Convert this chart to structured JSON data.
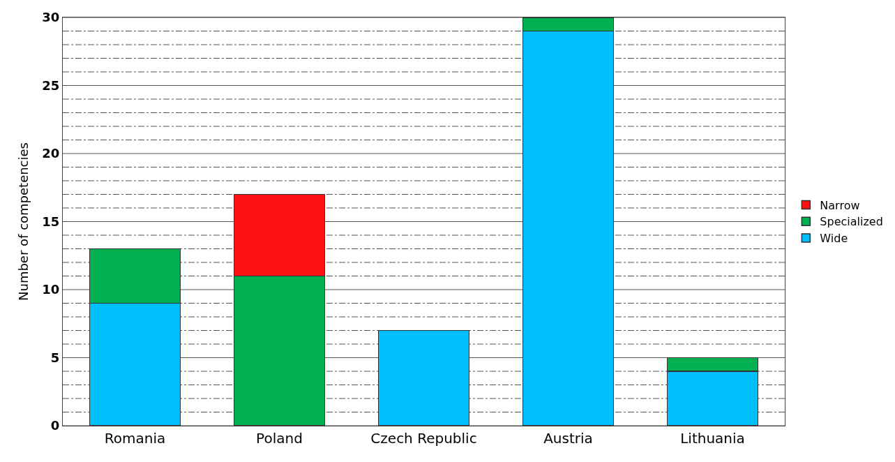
{
  "chart_data": {
    "type": "bar",
    "stacked": true,
    "ylabel": "Number of competencies",
    "categories": [
      "Romania",
      "Poland",
      "Czech Republic",
      "Austria",
      "Lithuania"
    ],
    "series": [
      {
        "name": "Wide",
        "color": "#00bfff",
        "values": [
          9,
          null,
          7,
          29,
          4
        ]
      },
      {
        "name": "Specialized",
        "color": "#00b050",
        "values": [
          4,
          11,
          null,
          1,
          1
        ]
      },
      {
        "name": "Narrow",
        "color": "#ff1111",
        "values": [
          null,
          6,
          null,
          null,
          null
        ]
      }
    ],
    "ylim": [
      0,
      30
    ],
    "yticks": [
      0,
      {
        "value": 1,
        "label": null
      },
      {
        "value": 2,
        "label": null
      },
      {
        "value": 3,
        "label": null
      },
      {
        "value": 4,
        "label": null
      },
      5,
      {
        "value": 6,
        "label": null
      },
      {
        "value": 7,
        "label": null
      },
      {
        "value": 8,
        "label": null
      },
      {
        "value": 9,
        "label": null
      },
      10,
      {
        "value": 11,
        "label": null
      },
      {
        "value": 12,
        "label": null
      },
      {
        "value": 13,
        "label": null
      },
      {
        "value": 14,
        "label": null
      },
      15,
      {
        "value": 16,
        "label": null
      },
      {
        "value": 17,
        "label": null
      },
      {
        "value": 18,
        "label": null
      },
      {
        "value": 19,
        "label": null
      },
      20,
      {
        "value": 21,
        "label": null
      },
      {
        "value": 22,
        "label": null
      },
      {
        "value": 23,
        "label": null
      },
      {
        "value": 24,
        "label": null
      },
      25,
      {
        "value": 26,
        "label": null
      },
      {
        "value": 27,
        "label": null
      },
      {
        "value": 28,
        "label": null
      },
      {
        "value": 29,
        "label": null
      },
      30
    ],
    "grid": "y",
    "legend": "right"
  }
}
